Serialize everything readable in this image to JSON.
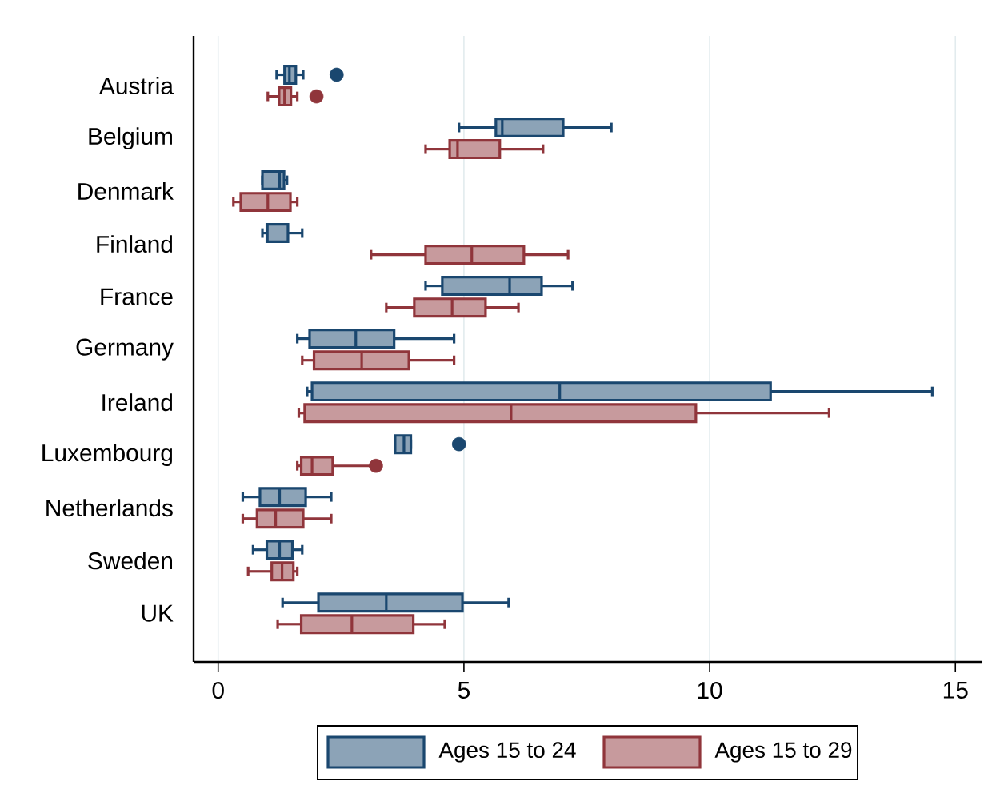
{
  "chart_data": {
    "type": "box",
    "orientation": "horizontal",
    "categories": [
      "Austria",
      "Belgium",
      "Denmark",
      "Finland",
      "France",
      "Germany",
      "Ireland",
      "Luxembourg",
      "Netherlands",
      "Sweden",
      "UK"
    ],
    "series": [
      {
        "name": "Ages 15 to 24",
        "color": "#1a476f",
        "boxes": [
          {
            "low": 1.19,
            "q1": 1.35,
            "median": 1.45,
            "q3": 1.58,
            "high": 1.73,
            "outliers": [
              2.41
            ]
          },
          {
            "low": 4.9,
            "q1": 5.65,
            "median": 5.78,
            "q3": 7.02,
            "high": 8.0
          },
          {
            "low": 0.9,
            "q1": 0.9,
            "median": 1.25,
            "q3": 1.34,
            "high": 1.4
          },
          {
            "low": 0.9,
            "q1": 0.99,
            "median": 1.0,
            "q3": 1.42,
            "high": 1.71
          },
          {
            "low": 4.22,
            "q1": 4.56,
            "median": 5.93,
            "q3": 6.58,
            "high": 7.21
          },
          {
            "low": 1.61,
            "q1": 1.86,
            "median": 2.8,
            "q3": 3.58,
            "high": 4.8
          },
          {
            "low": 1.81,
            "q1": 1.91,
            "median": 6.95,
            "q3": 11.24,
            "high": 14.53
          },
          {
            "low": 3.6,
            "q1": 3.6,
            "median": 3.78,
            "q3": 3.92,
            "high": 3.92,
            "outliers": [
              4.9
            ]
          },
          {
            "low": 0.5,
            "q1": 0.85,
            "median": 1.25,
            "q3": 1.78,
            "high": 2.3
          },
          {
            "low": 0.71,
            "q1": 0.99,
            "median": 1.25,
            "q3": 1.51,
            "high": 1.71
          },
          {
            "low": 1.31,
            "q1": 2.04,
            "median": 3.42,
            "q3": 4.97,
            "high": 5.91
          }
        ]
      },
      {
        "name": "Ages 15 to 29",
        "color": "#90353b",
        "boxes": [
          {
            "low": 1.01,
            "q1": 1.24,
            "median": 1.35,
            "q3": 1.48,
            "high": 1.61,
            "outliers": [
              2.0
            ]
          },
          {
            "low": 4.22,
            "q1": 4.71,
            "median": 4.87,
            "q3": 5.73,
            "high": 6.61
          },
          {
            "low": 0.31,
            "q1": 0.46,
            "median": 1.01,
            "q3": 1.47,
            "high": 1.61
          },
          {
            "low": 3.11,
            "q1": 4.22,
            "median": 5.16,
            "q3": 6.22,
            "high": 7.12
          },
          {
            "low": 3.42,
            "q1": 3.99,
            "median": 4.76,
            "q3": 5.44,
            "high": 6.11
          },
          {
            "low": 1.71,
            "q1": 1.95,
            "median": 2.92,
            "q3": 3.88,
            "high": 4.8
          },
          {
            "low": 1.64,
            "q1": 1.76,
            "median": 5.96,
            "q3": 9.72,
            "high": 12.43
          },
          {
            "low": 1.61,
            "q1": 1.69,
            "median": 1.91,
            "q3": 2.33,
            "high": 3.2,
            "outliers": [
              3.21
            ]
          },
          {
            "low": 0.5,
            "q1": 0.79,
            "median": 1.17,
            "q3": 1.73,
            "high": 2.3
          },
          {
            "low": 0.61,
            "q1": 1.09,
            "median": 1.3,
            "q3": 1.53,
            "high": 1.61
          },
          {
            "low": 1.21,
            "q1": 1.69,
            "median": 2.72,
            "q3": 3.97,
            "high": 4.61
          }
        ]
      }
    ],
    "xlim": [
      -0.5,
      15.55
    ],
    "xticks": [
      0,
      5,
      10,
      15
    ],
    "grid": "x",
    "legend": "bottom"
  }
}
